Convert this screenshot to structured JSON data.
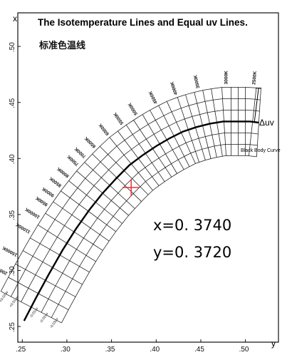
{
  "chart_data": {
    "type": "line",
    "title": "The Isotemperature Lines and Equal uv Lines.",
    "subtitle": "标准色温线",
    "xlabel": "y",
    "ylabel": "x",
    "x_axis_ticks": [
      ".25",
      ".30",
      ".35",
      ".40",
      ".45",
      ".50"
    ],
    "y_axis_ticks": [
      ".25",
      ".30",
      ".35",
      ".40",
      ".45",
      ".50"
    ],
    "xlim": [
      0.245,
      0.537
    ],
    "ylim": [
      0.236,
      0.53
    ],
    "grid": false,
    "series": [
      {
        "name": "Black Body Curve",
        "points": [
          {
            "y": 0.252,
            "x": 0.255
          },
          {
            "y": 0.265,
            "x": 0.275
          },
          {
            "y": 0.28,
            "x": 0.297
          },
          {
            "y": 0.295,
            "x": 0.318
          },
          {
            "y": 0.31,
            "x": 0.337
          },
          {
            "y": 0.325,
            "x": 0.354
          },
          {
            "y": 0.34,
            "x": 0.369
          },
          {
            "y": 0.355,
            "x": 0.382
          },
          {
            "y": 0.37,
            "x": 0.394
          },
          {
            "y": 0.385,
            "x": 0.403
          },
          {
            "y": 0.4,
            "x": 0.411
          },
          {
            "y": 0.415,
            "x": 0.418
          },
          {
            "y": 0.43,
            "x": 0.424
          },
          {
            "y": 0.445,
            "x": 0.428
          },
          {
            "y": 0.46,
            "x": 0.431
          },
          {
            "y": 0.475,
            "x": 0.433
          },
          {
            "y": 0.49,
            "x": 0.433
          },
          {
            "y": 0.505,
            "x": 0.433
          },
          {
            "y": 0.515,
            "x": 0.432
          }
        ]
      }
    ],
    "equal_uv_offsets": [
      -0.03,
      -0.02,
      -0.01,
      0.01,
      0.02,
      0.03
    ],
    "isotemperature_positions": [
      0.26,
      0.268,
      0.276,
      0.284,
      0.292,
      0.3,
      0.308,
      0.316,
      0.324,
      0.332,
      0.34,
      0.348,
      0.356,
      0.364,
      0.372,
      0.38,
      0.388,
      0.396,
      0.404,
      0.412,
      0.42,
      0.428,
      0.436,
      0.444,
      0.452,
      0.46,
      0.468,
      0.476,
      0.484,
      0.492,
      0.5,
      0.508,
      0.515
    ],
    "cct_labels": [
      {
        "y": 0.255,
        "text": "50000K"
      },
      {
        "y": 0.262,
        "text": "30000K"
      },
      {
        "y": 0.27,
        "text": "20000K"
      },
      {
        "y": 0.281,
        "text": "15000K"
      },
      {
        "y": 0.295,
        "text": "11000K"
      },
      {
        "y": 0.305,
        "text": "10000K"
      },
      {
        "y": 0.313,
        "text": "9500K"
      },
      {
        "y": 0.32,
        "text": "9000K"
      },
      {
        "y": 0.327,
        "text": "8500K"
      },
      {
        "y": 0.335,
        "text": "8000K"
      },
      {
        "y": 0.344,
        "text": "7500K"
      },
      {
        "y": 0.352,
        "text": "7000K"
      },
      {
        "y": 0.362,
        "text": "6500K"
      },
      {
        "y": 0.373,
        "text": "6000K"
      },
      {
        "y": 0.387,
        "text": "5500K"
      },
      {
        "y": 0.401,
        "text": "5000K"
      },
      {
        "y": 0.42,
        "text": "4500K"
      },
      {
        "y": 0.437,
        "text": "4000K"
      },
      {
        "y": 0.458,
        "text": "3500K"
      },
      {
        "y": 0.48,
        "text": "3000K"
      },
      {
        "y": 0.507,
        "text": "2500K"
      }
    ],
    "duv_labels": [
      "+0.03uv",
      "+0.02uv",
      "+0.01uv",
      "-0.01uv",
      "-0.02uv",
      "-0.03uv"
    ],
    "annotations": {
      "delta_uv_label": "Δuv",
      "black_body_label": "Black Body Curve"
    },
    "marked_point": {
      "x": 0.374,
      "y": 0.372
    }
  },
  "readout": {
    "x_text": "x=0. 3740",
    "y_text": "y=0. 3720",
    "marker_color": "#e8212b"
  }
}
